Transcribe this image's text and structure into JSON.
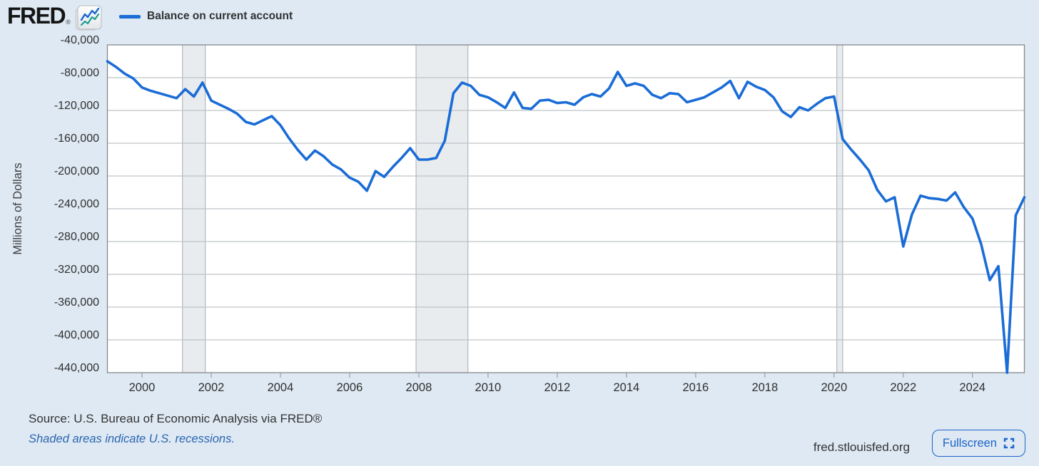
{
  "header": {
    "logo": "FRED",
    "registered_mark": "®",
    "legend_label": "Balance on current account"
  },
  "chart_data": {
    "type": "line",
    "series_name": "Balance on current account",
    "ylabel": "Millions of Dollars",
    "frequency": "quarterly",
    "x_start": 1999.0,
    "x_step": 0.25,
    "xlim": [
      1999.0,
      2025.5
    ],
    "ylim": [
      -440000,
      -40000
    ],
    "y_tick_step": 40000,
    "x_ticks": [
      2000,
      2002,
      2004,
      2006,
      2008,
      2010,
      2012,
      2014,
      2016,
      2018,
      2020,
      2022,
      2024
    ],
    "grid": "horizontal",
    "legend_position": "top-left",
    "recession_bands": [
      [
        2001.17,
        2001.83
      ],
      [
        2007.92,
        2009.42
      ],
      [
        2020.08,
        2020.25
      ]
    ],
    "values": [
      -60000,
      -67000,
      -75000,
      -81000,
      -92000,
      -96000,
      -99000,
      -102000,
      -105000,
      -94000,
      -103000,
      -86000,
      -108000,
      -113000,
      -118000,
      -124000,
      -134000,
      -137000,
      -132000,
      -127000,
      -138000,
      -154000,
      -168000,
      -180000,
      -169000,
      -176000,
      -186000,
      -192000,
      -202000,
      -207000,
      -218000,
      -194000,
      -201000,
      -189000,
      -178000,
      -166000,
      -180000,
      -180000,
      -178000,
      -157000,
      -99000,
      -86000,
      -90000,
      -101000,
      -104000,
      -110000,
      -117000,
      -98000,
      -117000,
      -118000,
      -108000,
      -107000,
      -111000,
      -110000,
      -113000,
      -104000,
      -100000,
      -103000,
      -93000,
      -73000,
      -90000,
      -87000,
      -90000,
      -101000,
      -105000,
      -99000,
      -100000,
      -110000,
      -107000,
      -104000,
      -98000,
      -92000,
      -84000,
      -105000,
      -85000,
      -91000,
      -95000,
      -104000,
      -121000,
      -128000,
      -116000,
      -120000,
      -112000,
      -105000,
      -103000,
      -155000,
      -168000,
      -180000,
      -193000,
      -217000,
      -231000,
      -226000,
      -286000,
      -247000,
      -224000,
      -227000,
      -228000,
      -230000,
      -220000,
      -238000,
      -252000,
      -283000,
      -327000,
      -310000,
      -450000,
      -248000,
      -226000
    ]
  },
  "footer": {
    "source": "Source: U.S. Bureau of Economic Analysis via FRED®",
    "recession_note": "Shaded areas indicate U.S. recessions.",
    "site": "fred.stlouisfed.org",
    "fullscreen_label": "Fullscreen"
  },
  "colors": {
    "line": "#1a6cd6",
    "page_bg": "#dee9f3",
    "plot_bg": "#ffffff",
    "gridline": "#bfc3c6",
    "plot_border": "#85898d",
    "recession_fill": "#e8ecef",
    "recession_edge": "#a7adb3",
    "tick_text": "#303030",
    "axis_title_text": "#404040",
    "accent_blue": "#1c64c8",
    "note_blue": "#2a65b0",
    "logo_line_blue": "#1b66d0",
    "logo_line_teal": "#1d9e8f"
  }
}
